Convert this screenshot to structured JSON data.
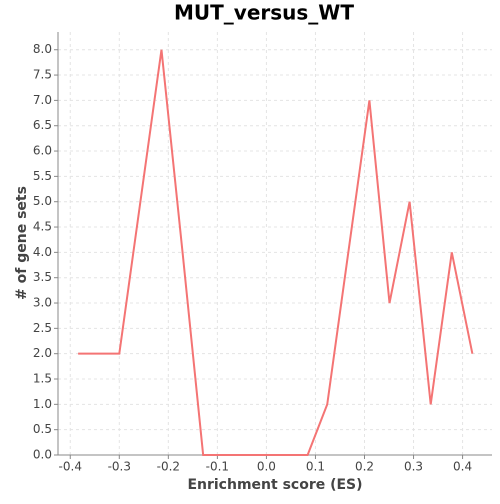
{
  "chart_data": {
    "type": "line",
    "title": "MUT_versus_WT",
    "x_label": "Enrichment score (ES)",
    "y_label": "# of gene sets",
    "x": [
      -0.384,
      -0.341,
      -0.3,
      -0.257,
      -0.214,
      -0.171,
      -0.129,
      -0.086,
      -0.043,
      -0.002,
      0.041,
      0.084,
      0.124,
      0.167,
      0.21,
      0.251,
      0.292,
      0.335,
      0.378,
      0.42
    ],
    "values": [
      2,
      2,
      2,
      5,
      8,
      4,
      0,
      0,
      0,
      0,
      0,
      0,
      1,
      4,
      7,
      3,
      5,
      1,
      4,
      2
    ],
    "color": "#f47474",
    "xlim": [
      -0.425,
      0.46
    ],
    "xticks": [
      -0.4,
      -0.3,
      -0.2,
      -0.1,
      {
        "value": 0,
        "label": "0.0"
      },
      0.1,
      0.2,
      0.3,
      0.4
    ],
    "ylim": [
      0,
      8.35
    ],
    "yticks": [
      {
        "value": 0,
        "label": "0.0"
      },
      0.5,
      {
        "value": 1,
        "label": "1.0"
      },
      1.5,
      {
        "value": 2,
        "label": "2.0"
      },
      2.5,
      {
        "value": 3,
        "label": "3.0"
      },
      3.5,
      {
        "value": 4,
        "label": "4.0"
      },
      4.5,
      {
        "value": 5,
        "label": "5.0"
      },
      5.5,
      {
        "value": 6,
        "label": "6.0"
      },
      6.5,
      {
        "value": 7,
        "label": "7.0"
      },
      7.5,
      {
        "value": 8,
        "label": "8.0"
      }
    ],
    "grid": true
  }
}
